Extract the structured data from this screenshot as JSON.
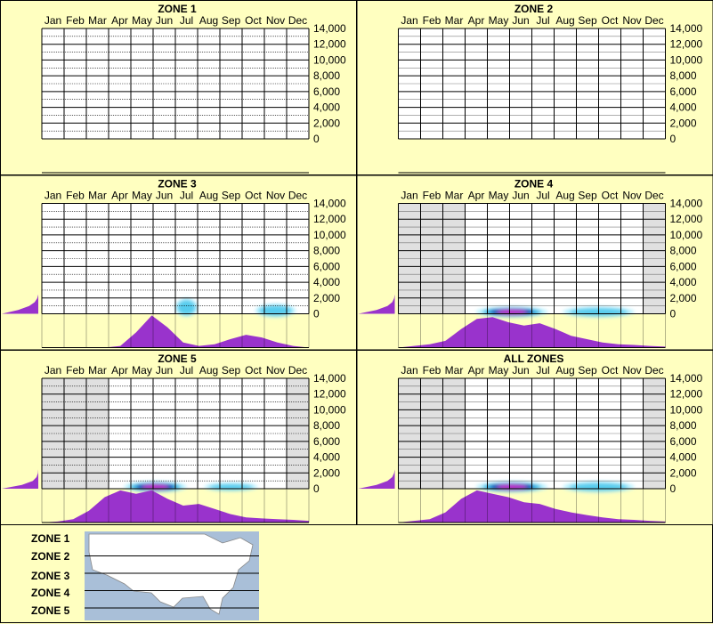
{
  "months": [
    "Jan",
    "Feb",
    "Mar",
    "Apr",
    "May",
    "Jun",
    "Jul",
    "Aug",
    "Sep",
    "Oct",
    "Nov",
    "Dec"
  ],
  "y_ticks": [
    "14,000",
    "12,000",
    "10,000",
    "8,000",
    "6,000",
    "4,000",
    "2,000",
    "0"
  ],
  "colors": {
    "background": "#ffffc0",
    "grid_bg": "#ffffff",
    "out_of_season": "#e0e0e0",
    "distribution": "#9933cc",
    "heat_peak": "#cc00cc",
    "heat_core": "#0000aa",
    "heat_mid": "#00aadd",
    "heat_outer": "#aaeeff"
  },
  "chart_data": [
    {
      "type": "heatmap",
      "title": "ZONE 1",
      "ylim": [
        0,
        14000
      ],
      "out_of_season_months": [],
      "heat_blobs": [],
      "month_distribution": [],
      "elevation_distribution": []
    },
    {
      "type": "heatmap",
      "title": "ZONE 2",
      "ylim": [
        0,
        14000
      ],
      "out_of_season_months": [],
      "heat_blobs": [],
      "month_distribution": [],
      "elevation_distribution": []
    },
    {
      "type": "heatmap",
      "title": "ZONE 3",
      "ylim": [
        0,
        14000
      ],
      "out_of_season_months": [],
      "heat_blobs": [
        {
          "month": 7.0,
          "elev": 800,
          "month_spread": 0.5,
          "elev_spread": 700,
          "intensity": 0.3
        },
        {
          "month": 11.0,
          "elev": 400,
          "month_spread": 0.9,
          "elev_spread": 500,
          "intensity": 0.2
        }
      ],
      "month_distribution": [
        0,
        0,
        0,
        0,
        0,
        0.05,
        0.45,
        0.95,
        0.6,
        0.15,
        0.05,
        0.1,
        0.25,
        0.38,
        0.3,
        0.15,
        0.05,
        0
      ],
      "elevation_distribution": [
        1.0,
        0.55,
        0.25,
        0.1,
        0.03,
        0,
        0,
        0,
        0,
        0,
        0
      ]
    },
    {
      "type": "heatmap",
      "title": "ZONE 4",
      "ylim": [
        0,
        14000
      ],
      "out_of_season_months": [
        1,
        2,
        3,
        12
      ],
      "heat_blobs": [
        {
          "month": 5.6,
          "elev": 200,
          "month_spread": 1.6,
          "elev_spread": 400,
          "intensity": 1.0
        },
        {
          "month": 9.5,
          "elev": 200,
          "month_spread": 1.6,
          "elev_spread": 400,
          "intensity": 0.25
        }
      ],
      "month_distribution": [
        0,
        0.05,
        0.1,
        0.2,
        0.55,
        0.85,
        0.9,
        0.75,
        0.65,
        0.72,
        0.55,
        0.35,
        0.25,
        0.15,
        0.1,
        0.08,
        0.05,
        0.03
      ],
      "elevation_distribution": [
        1.0,
        0.5,
        0.2,
        0.07,
        0.02,
        0,
        0,
        0,
        0,
        0,
        0
      ]
    },
    {
      "type": "heatmap",
      "title": "ZONE 5",
      "ylim": [
        0,
        14000
      ],
      "out_of_season_months": [
        1,
        2,
        3,
        12
      ],
      "heat_blobs": [
        {
          "month": 5.6,
          "elev": 200,
          "month_spread": 1.4,
          "elev_spread": 400,
          "intensity": 1.0
        },
        {
          "month": 9.0,
          "elev": 150,
          "month_spread": 1.2,
          "elev_spread": 300,
          "intensity": 0.15
        }
      ],
      "month_distribution": [
        0,
        0.03,
        0.1,
        0.35,
        0.75,
        0.95,
        0.85,
        0.95,
        0.7,
        0.5,
        0.55,
        0.4,
        0.25,
        0.15,
        0.12,
        0.1,
        0.08,
        0.05
      ],
      "elevation_distribution": [
        1.0,
        0.45,
        0.15,
        0.05,
        0.01,
        0,
        0,
        0,
        0,
        0,
        0
      ]
    },
    {
      "type": "heatmap",
      "title": "ALL ZONES",
      "ylim": [
        0,
        14000
      ],
      "out_of_season_months": [
        1,
        2,
        3,
        12
      ],
      "heat_blobs": [
        {
          "month": 5.6,
          "elev": 200,
          "month_spread": 1.6,
          "elev_spread": 400,
          "intensity": 1.0
        },
        {
          "month": 9.5,
          "elev": 200,
          "month_spread": 1.6,
          "elev_spread": 400,
          "intensity": 0.25
        }
      ],
      "month_distribution": [
        0,
        0.05,
        0.1,
        0.3,
        0.7,
        0.95,
        0.85,
        0.75,
        0.6,
        0.55,
        0.4,
        0.3,
        0.22,
        0.15,
        0.1,
        0.08,
        0.05,
        0.03
      ],
      "elevation_distribution": [
        1.0,
        0.5,
        0.2,
        0.07,
        0.02,
        0,
        0,
        0,
        0,
        0,
        0
      ]
    }
  ],
  "legend": {
    "zones": [
      "ZONE 1",
      "ZONE 2",
      "ZONE 3",
      "ZONE 4",
      "ZONE 5"
    ]
  }
}
